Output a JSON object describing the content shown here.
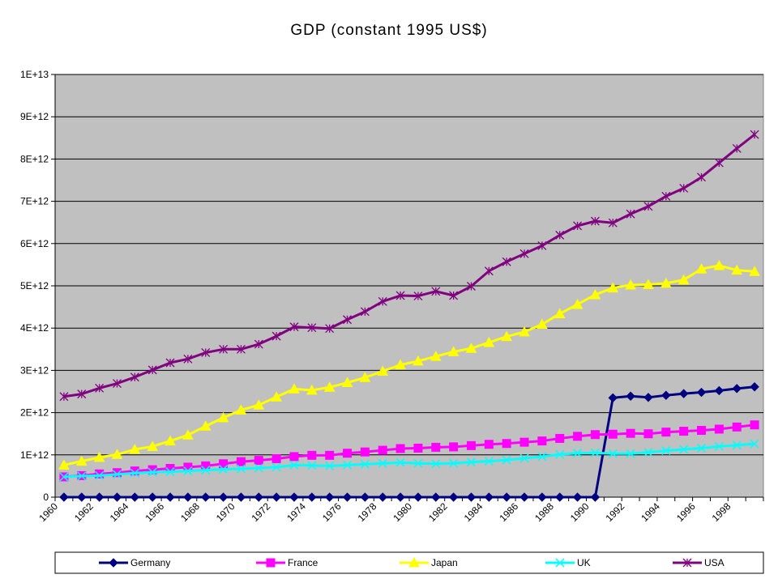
{
  "chart_data": {
    "type": "line",
    "title": "GDP (constant 1995 US$)",
    "xlabel": "",
    "ylabel": "",
    "ylim": [
      0,
      10000000000000
    ],
    "y_ticks": [
      0,
      1000000000000,
      2000000000000,
      3000000000000,
      4000000000000,
      5000000000000,
      6000000000000,
      7000000000000,
      8000000000000,
      9000000000000,
      10000000000000
    ],
    "y_tick_labels": [
      "0",
      "1E+12",
      "2E+12",
      "3E+12",
      "4E+12",
      "5E+12",
      "6E+12",
      "7E+12",
      "8E+12",
      "9E+12",
      "1E+13"
    ],
    "x": [
      1960,
      1961,
      1962,
      1963,
      1964,
      1965,
      1966,
      1967,
      1968,
      1969,
      1970,
      1971,
      1972,
      1973,
      1974,
      1975,
      1976,
      1977,
      1978,
      1979,
      1980,
      1981,
      1982,
      1983,
      1984,
      1985,
      1986,
      1987,
      1988,
      1989,
      1990,
      1991,
      1992,
      1993,
      1994,
      1995,
      1996,
      1997,
      1998,
      1999
    ],
    "x_tick_labels": [
      "1960",
      "1962",
      "1964",
      "1966",
      "1968",
      "1970",
      "1972",
      "1974",
      "1976",
      "1978",
      "1980",
      "1982",
      "1984",
      "1986",
      "1988",
      "1990",
      "1992",
      "1994",
      "1996",
      "1998"
    ],
    "grid": true,
    "background_color": "#c0c0c0",
    "legend_position": "bottom",
    "series": [
      {
        "name": "Germany",
        "color": "#000080",
        "marker": "diamond",
        "values": [
          0,
          0,
          0,
          0,
          0,
          0,
          0,
          0,
          0,
          0,
          0,
          0,
          0,
          0,
          0,
          0,
          0,
          0,
          0,
          0,
          0,
          0,
          0,
          0,
          0,
          0,
          0,
          0,
          0,
          0,
          0,
          2350000000000,
          2390000000000,
          2360000000000,
          2410000000000,
          2450000000000,
          2480000000000,
          2520000000000,
          2570000000000,
          2610000000000
        ]
      },
      {
        "name": "France",
        "color": "#ff00ff",
        "marker": "square",
        "values": [
          480000000000,
          510000000000,
          550000000000,
          580000000000,
          620000000000,
          650000000000,
          680000000000,
          710000000000,
          740000000000,
          790000000000,
          840000000000,
          870000000000,
          910000000000,
          960000000000,
          990000000000,
          990000000000,
          1040000000000,
          1070000000000,
          1110000000000,
          1150000000000,
          1160000000000,
          1180000000000,
          1190000000000,
          1220000000000,
          1250000000000,
          1270000000000,
          1300000000000,
          1330000000000,
          1390000000000,
          1440000000000,
          1480000000000,
          1490000000000,
          1510000000000,
          1500000000000,
          1540000000000,
          1560000000000,
          1580000000000,
          1610000000000,
          1660000000000,
          1710000000000
        ]
      },
      {
        "name": "Japan",
        "color": "#ffff00",
        "marker": "triangle",
        "values": [
          760000000000,
          850000000000,
          940000000000,
          1010000000000,
          1130000000000,
          1200000000000,
          1330000000000,
          1470000000000,
          1680000000000,
          1880000000000,
          2060000000000,
          2180000000000,
          2370000000000,
          2560000000000,
          2530000000000,
          2600000000000,
          2710000000000,
          2830000000000,
          2980000000000,
          3130000000000,
          3220000000000,
          3330000000000,
          3440000000000,
          3520000000000,
          3660000000000,
          3800000000000,
          3910000000000,
          4090000000000,
          4340000000000,
          4560000000000,
          4790000000000,
          4950000000000,
          5020000000000,
          5030000000000,
          5060000000000,
          5140000000000,
          5400000000000,
          5480000000000,
          5370000000000,
          5340000000000
        ]
      },
      {
        "name": "UK",
        "color": "#00ffff",
        "marker": "x",
        "values": [
          480000000000,
          500000000000,
          510000000000,
          540000000000,
          570000000000,
          590000000000,
          600000000000,
          620000000000,
          640000000000,
          660000000000,
          670000000000,
          690000000000,
          710000000000,
          760000000000,
          750000000000,
          740000000000,
          760000000000,
          780000000000,
          800000000000,
          820000000000,
          800000000000,
          790000000000,
          800000000000,
          830000000000,
          850000000000,
          880000000000,
          920000000000,
          960000000000,
          1010000000000,
          1040000000000,
          1050000000000,
          1030000000000,
          1030000000000,
          1060000000000,
          1100000000000,
          1130000000000,
          1160000000000,
          1200000000000,
          1230000000000,
          1260000000000
        ]
      },
      {
        "name": "USA",
        "color": "#800080",
        "marker": "star",
        "values": [
          2380000000000,
          2440000000000,
          2580000000000,
          2690000000000,
          2840000000000,
          3010000000000,
          3180000000000,
          3270000000000,
          3420000000000,
          3500000000000,
          3500000000000,
          3620000000000,
          3810000000000,
          4030000000000,
          4010000000000,
          3990000000000,
          4200000000000,
          4390000000000,
          4630000000000,
          4770000000000,
          4760000000000,
          4870000000000,
          4770000000000,
          4990000000000,
          5350000000000,
          5570000000000,
          5760000000000,
          5950000000000,
          6200000000000,
          6420000000000,
          6530000000000,
          6490000000000,
          6700000000000,
          6880000000000,
          7120000000000,
          7310000000000,
          7570000000000,
          7910000000000,
          8250000000000,
          8580000000000
        ]
      }
    ]
  }
}
